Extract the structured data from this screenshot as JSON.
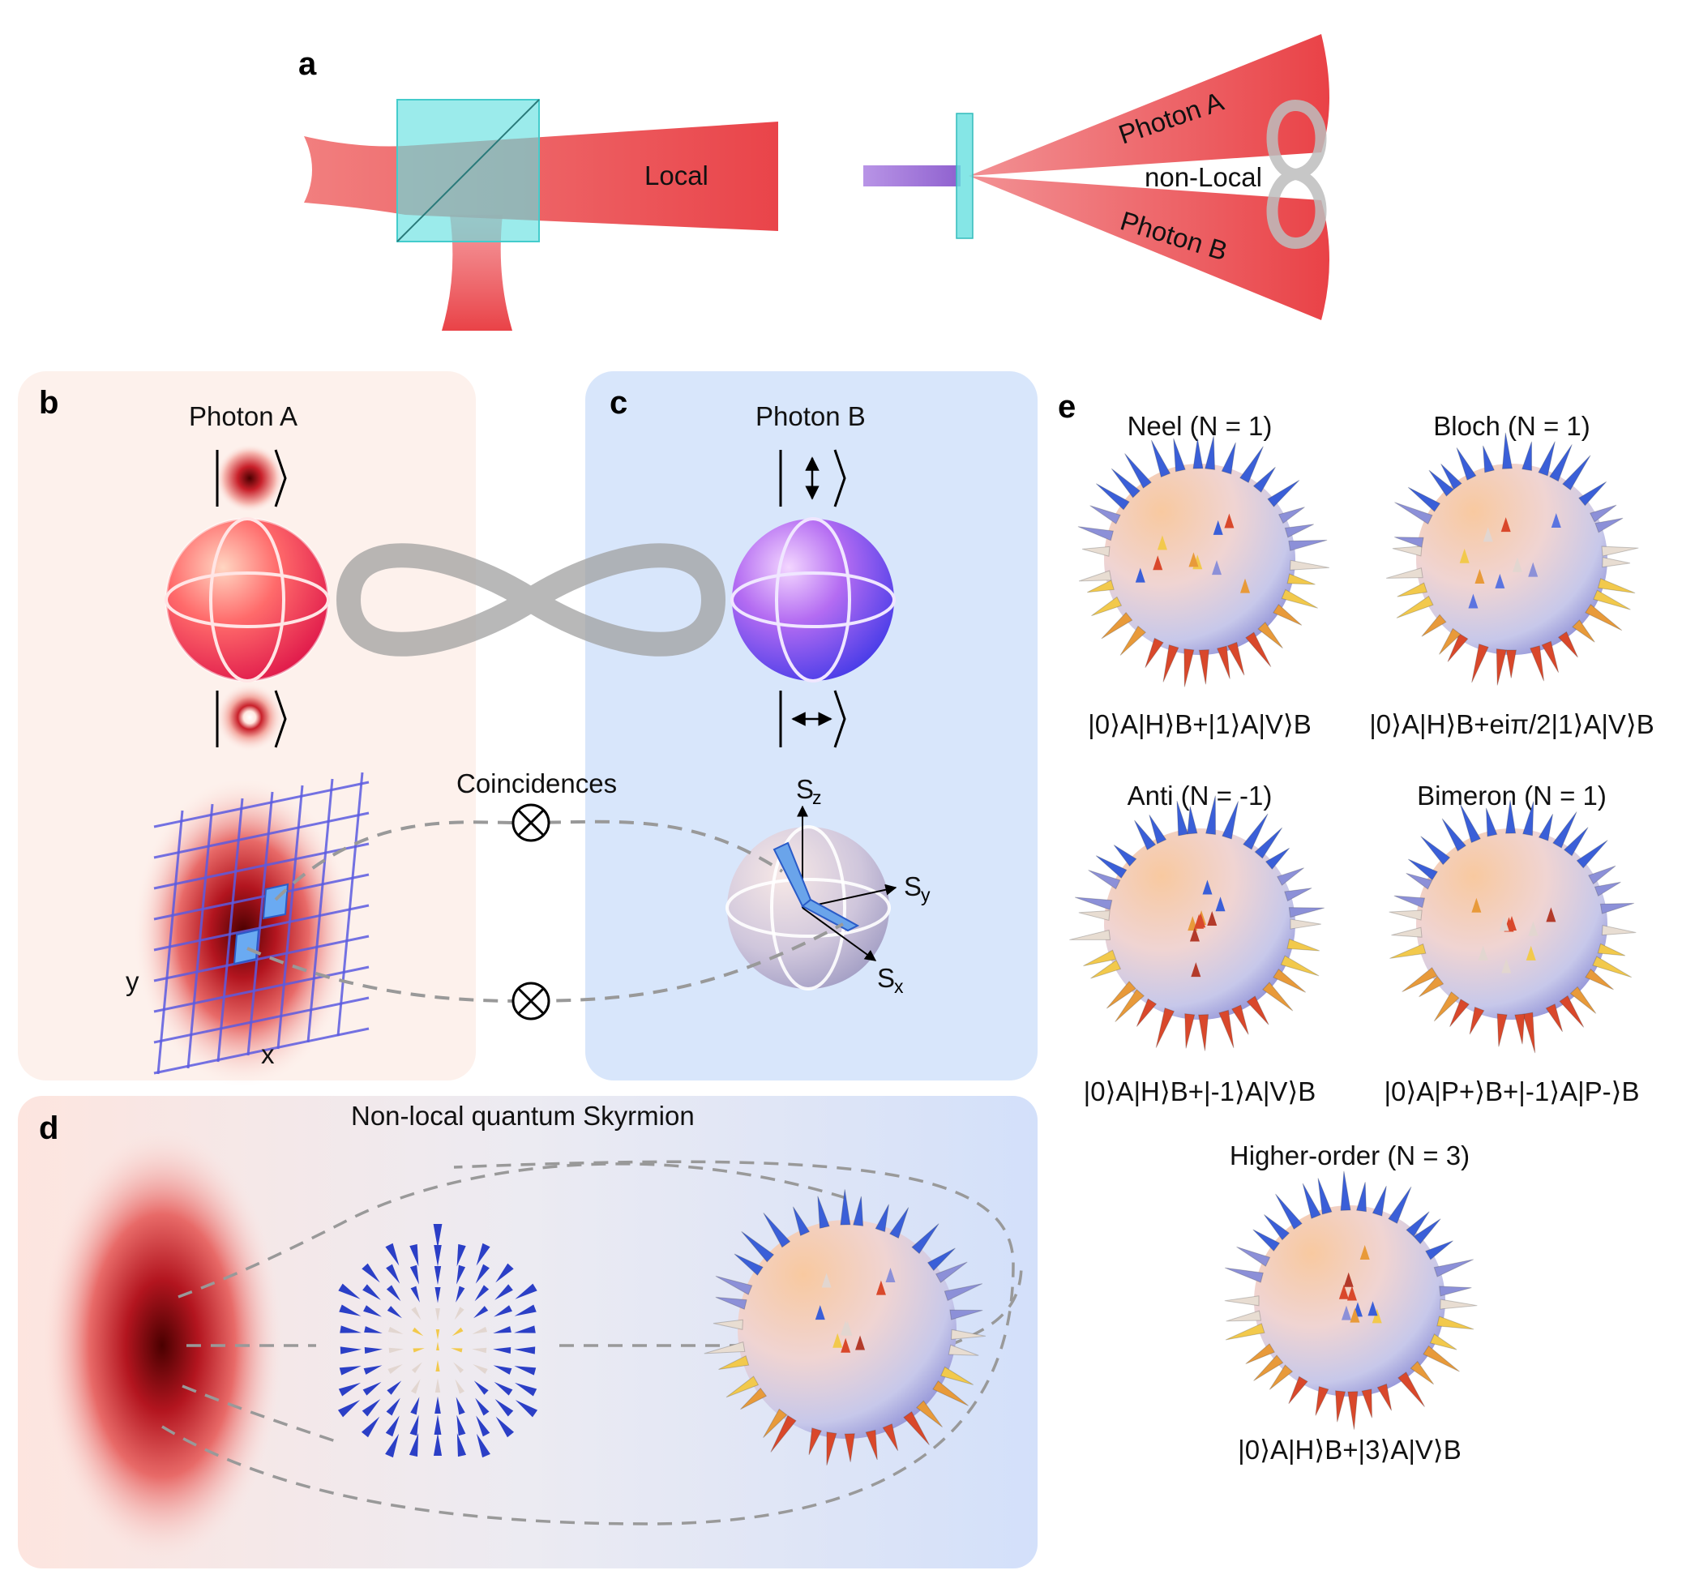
{
  "panel_a": {
    "letter": "a",
    "local_label": "Local",
    "photon_a_label": "Photon A",
    "photon_b_label": "Photon B",
    "nonlocal_label": "non-Local"
  },
  "panel_b": {
    "letter": "b",
    "title": "Photon A",
    "axis_x": "x",
    "axis_y": "y"
  },
  "panel_c": {
    "letter": "c",
    "title": "Photon B",
    "coincidences": "Coincidences",
    "sz": "S",
    "sz_sub": "z",
    "sy": "S",
    "sy_sub": "y",
    "sx": "S",
    "sx_sub": "x"
  },
  "panel_d": {
    "letter": "d",
    "title": "Non-local quantum Skyrmion"
  },
  "panel_e": {
    "letter": "e",
    "items": [
      {
        "title": "Neel (N = 1)",
        "formula": "|0⟩A|H⟩B+|1⟩A|V⟩B"
      },
      {
        "title": "Bloch (N = 1)",
        "formula": "|0⟩A|H⟩B+eiπ/2|1⟩A|V⟩B"
      },
      {
        "title": "Anti (N = -1)",
        "formula": "|0⟩A|H⟩B+|-1⟩A|V⟩B"
      },
      {
        "title": "Bimeron (N = 1)",
        "formula": "|0⟩A|P+⟩B+|-1⟩A|P-⟩B"
      },
      {
        "title": "Higher-order (N = 3)",
        "formula": "|0⟩A|H⟩B+|3⟩A|V⟩B"
      }
    ]
  },
  "colors": {
    "beam_red": "#e8383d",
    "cube_cyan": "#66e0e0",
    "pump_purple": "#9b6fd6",
    "grid_blue": "#5a5ae0",
    "panel_b_bg": "#fdf1ec",
    "panel_c_bg": "#d8e6fb"
  }
}
